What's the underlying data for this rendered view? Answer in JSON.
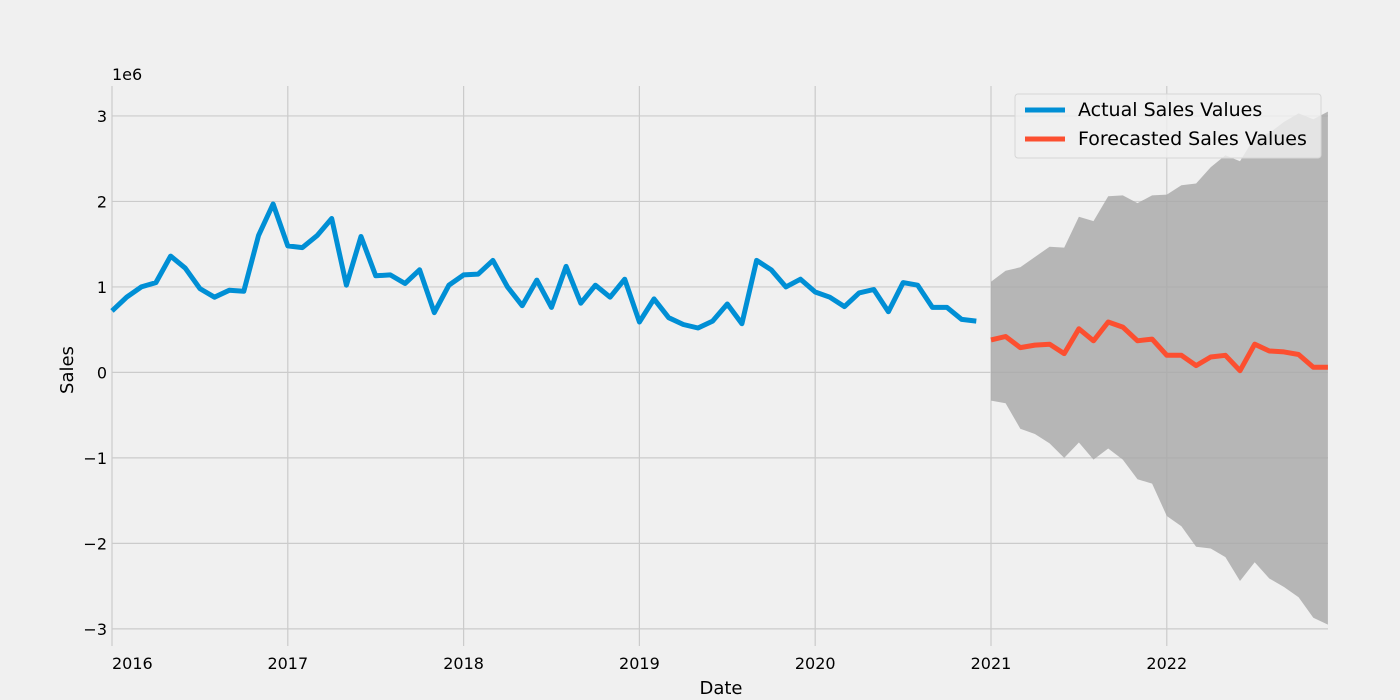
{
  "chart_data": {
    "type": "line",
    "title": "",
    "xlabel": "Date",
    "ylabel": "Sales",
    "y_offset_label": "1e6",
    "y_scale": 1000000,
    "xlim": [
      2016.0,
      2022.917
    ],
    "ylim": [
      -3.2,
      3.35
    ],
    "x_ticks": [
      2016,
      2017,
      2018,
      2019,
      2020,
      2021,
      2022
    ],
    "x_tick_labels": [
      "2016",
      "2017",
      "2018",
      "2019",
      "2020",
      "2021",
      "2022"
    ],
    "y_ticks": [
      -3,
      -2,
      -1,
      0,
      1,
      2,
      3
    ],
    "y_tick_labels": [
      "−3",
      "−2",
      "−1",
      "0",
      "1",
      "2",
      "3"
    ],
    "grid": true,
    "legend": {
      "placement": "top-right"
    },
    "colors": {
      "background": "#f0f0f0",
      "grid": "#cbcbcb",
      "actual": "#008fd5",
      "forecast": "#fc4f30",
      "band": "#a8a8a8"
    },
    "series": [
      {
        "name": "Actual Sales Values",
        "x_start": "2016-01",
        "x_step_months": 1,
        "values": [
          0.72,
          0.88,
          1.0,
          1.05,
          1.36,
          1.22,
          0.98,
          0.88,
          0.96,
          0.95,
          1.6,
          1.97,
          1.48,
          1.46,
          1.6,
          1.8,
          1.02,
          1.59,
          1.13,
          1.14,
          1.04,
          1.2,
          0.7,
          1.02,
          1.14,
          1.15,
          1.31,
          1.0,
          0.78,
          1.08,
          0.76,
          1.24,
          0.81,
          1.02,
          0.88,
          1.09,
          0.59,
          0.86,
          0.64,
          0.56,
          0.52,
          0.6,
          0.8,
          0.57,
          1.31,
          1.2,
          1.0,
          1.09,
          0.94,
          0.88,
          0.77,
          0.93,
          0.97,
          0.71,
          1.05,
          1.02,
          0.76,
          0.76,
          0.62,
          0.6
        ]
      },
      {
        "name": "Forecasted Sales Values",
        "x_start": "2021-01",
        "x_step_months": 1,
        "values": [
          0.38,
          0.42,
          0.29,
          0.32,
          0.33,
          0.22,
          0.51,
          0.37,
          0.59,
          0.53,
          0.37,
          0.39,
          0.2,
          0.2,
          0.08,
          0.18,
          0.2,
          0.02,
          0.33,
          0.25,
          0.24,
          0.21,
          0.06,
          0.06
        ],
        "band_upper": [
          1.06,
          1.19,
          1.23,
          1.35,
          1.47,
          1.46,
          1.82,
          1.77,
          2.06,
          2.07,
          1.98,
          2.07,
          2.08,
          2.19,
          2.21,
          2.4,
          2.54,
          2.47,
          2.75,
          2.8,
          2.93,
          3.03,
          2.96,
          3.05
        ],
        "band_lower": [
          -0.33,
          -0.36,
          -0.66,
          -0.72,
          -0.83,
          -1.0,
          -0.82,
          -1.02,
          -0.89,
          -1.02,
          -1.25,
          -1.3,
          -1.68,
          -1.8,
          -2.04,
          -2.06,
          -2.16,
          -2.44,
          -2.22,
          -2.41,
          -2.51,
          -2.63,
          -2.87,
          -2.95
        ]
      }
    ]
  }
}
